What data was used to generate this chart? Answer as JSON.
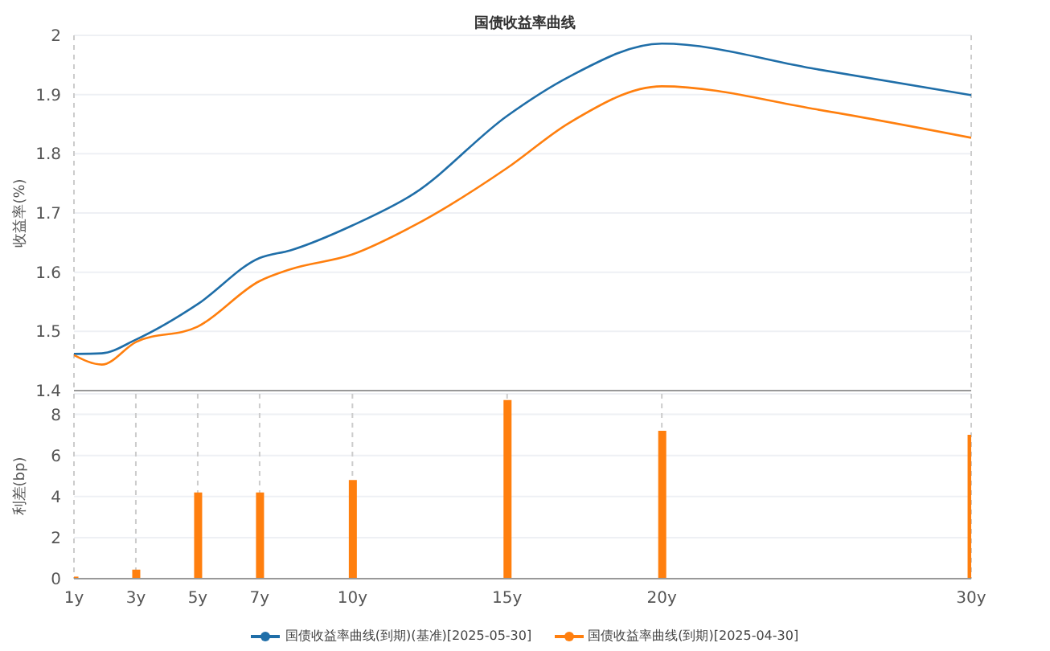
{
  "chart_data": [
    {
      "type": "line",
      "title": "国债收益率曲线",
      "ylabel": "收益率(%)",
      "x": [
        1,
        1.9,
        3,
        5,
        7,
        8,
        10,
        12,
        15,
        17,
        20,
        25,
        30
      ],
      "series": [
        {
          "name": "国债收益率曲线(到期)(基准)[2025-05-30]",
          "color": "#1f6ea8",
          "values": [
            1.462,
            1.463,
            1.486,
            1.546,
            1.624,
            1.637,
            1.679,
            1.733,
            1.864,
            1.93,
            1.986,
            1.943,
            1.899
          ]
        },
        {
          "name": "国债收益率曲线(到期)[2025-04-30]",
          "color": "#ff7f0e",
          "values": [
            1.46,
            1.444,
            1.482,
            1.508,
            1.585,
            1.605,
            1.63,
            1.679,
            1.776,
            1.852,
            1.914,
            1.875,
            1.827
          ]
        }
      ],
      "xlim": [
        1,
        30
      ],
      "xticks": [
        {
          "value": 1,
          "label": null
        },
        {
          "value": 3,
          "label": null
        },
        {
          "value": 5,
          "label": null
        },
        {
          "value": 7,
          "label": null
        },
        {
          "value": 10,
          "label": null
        },
        {
          "value": 15,
          "label": null
        },
        {
          "value": 20,
          "label": null
        },
        {
          "value": 30,
          "label": null
        }
      ],
      "ylim": [
        1.4,
        2
      ],
      "yticks": [
        1.4,
        1.5,
        1.6,
        1.7,
        1.8,
        1.9,
        2
      ],
      "grid": true,
      "legend": "bottom",
      "tick_labels": "y",
      "marker": "none"
    },
    {
      "type": "bar",
      "ylabel": "利差(bp)",
      "x": [
        1,
        3,
        5,
        7,
        10,
        15,
        20,
        30
      ],
      "values": [
        0.1,
        0.44,
        4.2,
        4.2,
        4.8,
        8.7,
        7.2,
        7.0
      ],
      "color": "#ff7f0e",
      "xlim": [
        1,
        30
      ],
      "xticks": [
        {
          "value": 1,
          "label": "1y"
        },
        {
          "value": 3,
          "label": "3y"
        },
        {
          "value": 5,
          "label": "5y"
        },
        {
          "value": 7,
          "label": "7y"
        },
        {
          "value": 10,
          "label": "10y"
        },
        {
          "value": 15,
          "label": "15y"
        },
        {
          "value": 20,
          "label": "20y"
        },
        {
          "value": 30,
          "label": "30y"
        }
      ],
      "ylim": [
        0,
        9
      ],
      "yticks": [
        0,
        2,
        4,
        6,
        8
      ],
      "grid": true
    }
  ]
}
